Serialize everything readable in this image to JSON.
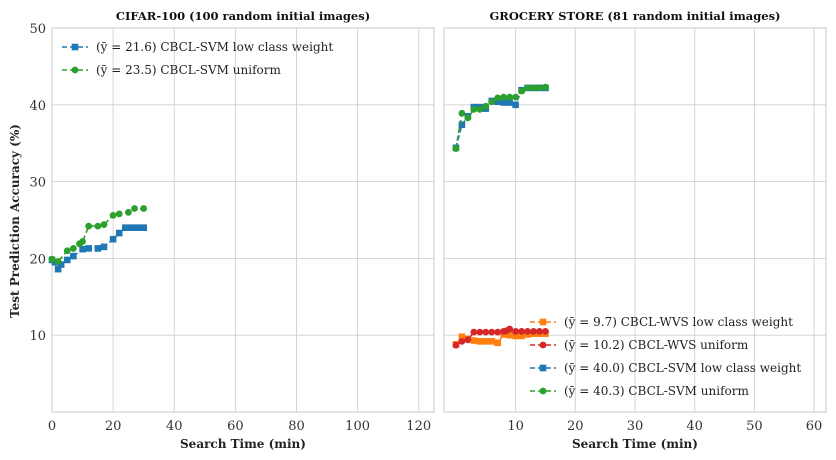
{
  "figure": {
    "ylabel": "Test Prediction Accuracy (%)",
    "ylim": [
      0,
      50
    ],
    "yticks": [
      10,
      20,
      30,
      40,
      50
    ],
    "grid": true
  },
  "chart_data": [
    {
      "type": "line",
      "title": "CIFAR-100 (100 random initial images)",
      "xlabel": "Search Time (min)",
      "ylabel": "Test Prediction Accuracy (%)",
      "xlim": [
        0,
        125
      ],
      "ylim": [
        0,
        50
      ],
      "xticks": [
        0,
        20,
        40,
        60,
        80,
        100,
        120
      ],
      "yticks": [
        10,
        20,
        30,
        40,
        50
      ],
      "legend_position": "top-left",
      "series": [
        {
          "name": "(ȳ = 21.6) CBCL-SVM low class weight",
          "color": "#1f77b4",
          "marker": "square",
          "x": [
            0,
            1,
            2,
            3,
            5,
            7,
            10,
            12,
            15,
            17,
            20,
            22,
            24,
            26,
            28,
            30
          ],
          "y": [
            19.8,
            19.5,
            18.6,
            19.2,
            19.8,
            20.3,
            21.2,
            21.3,
            21.3,
            21.5,
            22.5,
            23.3,
            24.0,
            24.0,
            24.0,
            24.0
          ]
        },
        {
          "name": "(ȳ = 23.5) CBCL-SVM uniform",
          "color": "#2ca02c",
          "marker": "circle",
          "x": [
            0,
            2,
            5,
            7,
            9,
            10,
            12,
            15,
            17,
            20,
            22,
            25,
            27,
            30
          ],
          "y": [
            19.9,
            19.6,
            21.0,
            21.3,
            21.9,
            22.2,
            24.2,
            24.2,
            24.4,
            25.6,
            25.8,
            26.0,
            26.5,
            26.5
          ]
        }
      ]
    },
    {
      "type": "line",
      "title": "GROCERY STORE (81 random initial images)",
      "xlabel": "Search Time (min)",
      "xlim": [
        -2,
        62
      ],
      "ylim": [
        0,
        50
      ],
      "xticks": [
        10,
        20,
        30,
        40,
        50,
        60
      ],
      "yticks": [
        10,
        20,
        30,
        40,
        50
      ],
      "legend_position": "bottom-right",
      "series": [
        {
          "name": "(ȳ =  9.7) CBCL-WVS low class weight",
          "color": "#ff7f0e",
          "marker": "square",
          "x": [
            0,
            1,
            2,
            3,
            4,
            5,
            6,
            7,
            8,
            9,
            10,
            11,
            12,
            13,
            14,
            15
          ],
          "y": [
            8.8,
            9.8,
            9.5,
            9.3,
            9.2,
            9.2,
            9.2,
            9.0,
            10.1,
            10.0,
            9.9,
            9.9,
            10.1,
            10.2,
            10.2,
            10.2
          ]
        },
        {
          "name": "(ȳ = 10.2) CBCL-WVS uniform",
          "color": "#d62728",
          "marker": "circle",
          "x": [
            0,
            1,
            2,
            3,
            4,
            5,
            6,
            7,
            8,
            8.5,
            9,
            10,
            11,
            12,
            13,
            14,
            15
          ],
          "y": [
            8.7,
            9.2,
            9.4,
            10.4,
            10.4,
            10.4,
            10.4,
            10.4,
            10.5,
            10.6,
            10.8,
            10.5,
            10.5,
            10.5,
            10.5,
            10.5,
            10.5
          ]
        },
        {
          "name": "(ȳ = 40.0) CBCL-SVM low class weight",
          "color": "#1f77b4",
          "marker": "square",
          "x": [
            0,
            1,
            2,
            3,
            4,
            5,
            6,
            7,
            8,
            9,
            10,
            11,
            12,
            13,
            14,
            15
          ],
          "y": [
            34.4,
            37.4,
            38.5,
            39.7,
            39.7,
            39.5,
            40.5,
            40.4,
            40.3,
            40.3,
            40.0,
            41.9,
            42.2,
            42.2,
            42.2,
            42.2
          ]
        },
        {
          "name": "(ȳ = 40.3) CBCL-SVM uniform",
          "color": "#2ca02c",
          "marker": "circle",
          "x": [
            0,
            1,
            2,
            3,
            4,
            5,
            6,
            7,
            8,
            9,
            10,
            11,
            12,
            13,
            14,
            15
          ],
          "y": [
            34.3,
            38.9,
            38.3,
            39.4,
            39.4,
            39.8,
            40.4,
            40.9,
            41.0,
            41.0,
            41.0,
            41.8,
            42.2,
            42.2,
            42.2,
            42.3
          ]
        }
      ]
    }
  ]
}
